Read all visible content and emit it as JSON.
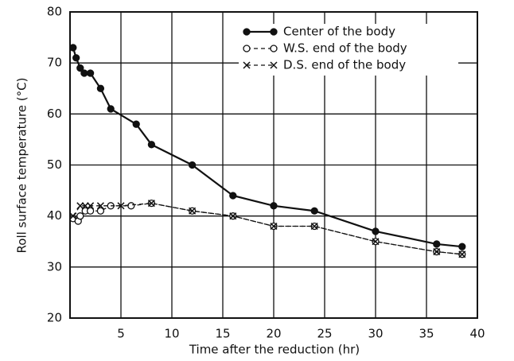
{
  "chart_data": {
    "type": "line",
    "xlabel": "Time after the reduction (hr)",
    "ylabel": "Roll surface temperature (°C)",
    "xlim": [
      0,
      40
    ],
    "xticks": [
      5,
      10,
      15,
      20,
      25,
      30,
      35,
      40
    ],
    "ylim": [
      20,
      80
    ],
    "yticks": [
      20,
      30,
      40,
      50,
      60,
      70,
      80
    ],
    "grid": true,
    "legend": "upper right",
    "series": [
      {
        "name": "Center of the body",
        "color": "#111111",
        "marker": "filled-circle",
        "dash": "solid",
        "x": [
          0.3,
          0.6,
          1.0,
          1.4,
          2.0,
          3.0,
          4.0,
          6.5,
          8.0,
          12.0,
          16.0,
          20.0,
          24.0,
          30.0,
          36.0,
          38.5
        ],
        "values": [
          73,
          71,
          69,
          68,
          68,
          65,
          61,
          58,
          54,
          50,
          44,
          42,
          41,
          37,
          34.5,
          34
        ]
      },
      {
        "name": "W.S. end of the body",
        "color": "#111111",
        "marker": "open-circle",
        "dash": "dashed",
        "x": [
          0.3,
          0.8,
          1.0,
          1.5,
          2.0,
          3.0,
          4.0,
          6.0,
          8.0,
          12.0,
          16.0,
          20.0,
          24.0,
          30.0,
          36.0,
          38.5
        ],
        "values": [
          39.5,
          39,
          40,
          41,
          41,
          41,
          42,
          42,
          42.5,
          41,
          40,
          38,
          38,
          35,
          33,
          32.5
        ]
      },
      {
        "name": "D.S. end of the body",
        "color": "#111111",
        "marker": "cross",
        "dash": "dashed",
        "x": [
          0.3,
          1.0,
          1.5,
          2.0,
          3.0,
          5.0,
          8.0,
          12.0,
          16.0,
          20.0,
          24.0,
          30.0,
          36.0,
          38.5
        ],
        "values": [
          40,
          42,
          42,
          42,
          42,
          42,
          42.5,
          41,
          40,
          38,
          38,
          35,
          33,
          32.5
        ]
      }
    ]
  }
}
